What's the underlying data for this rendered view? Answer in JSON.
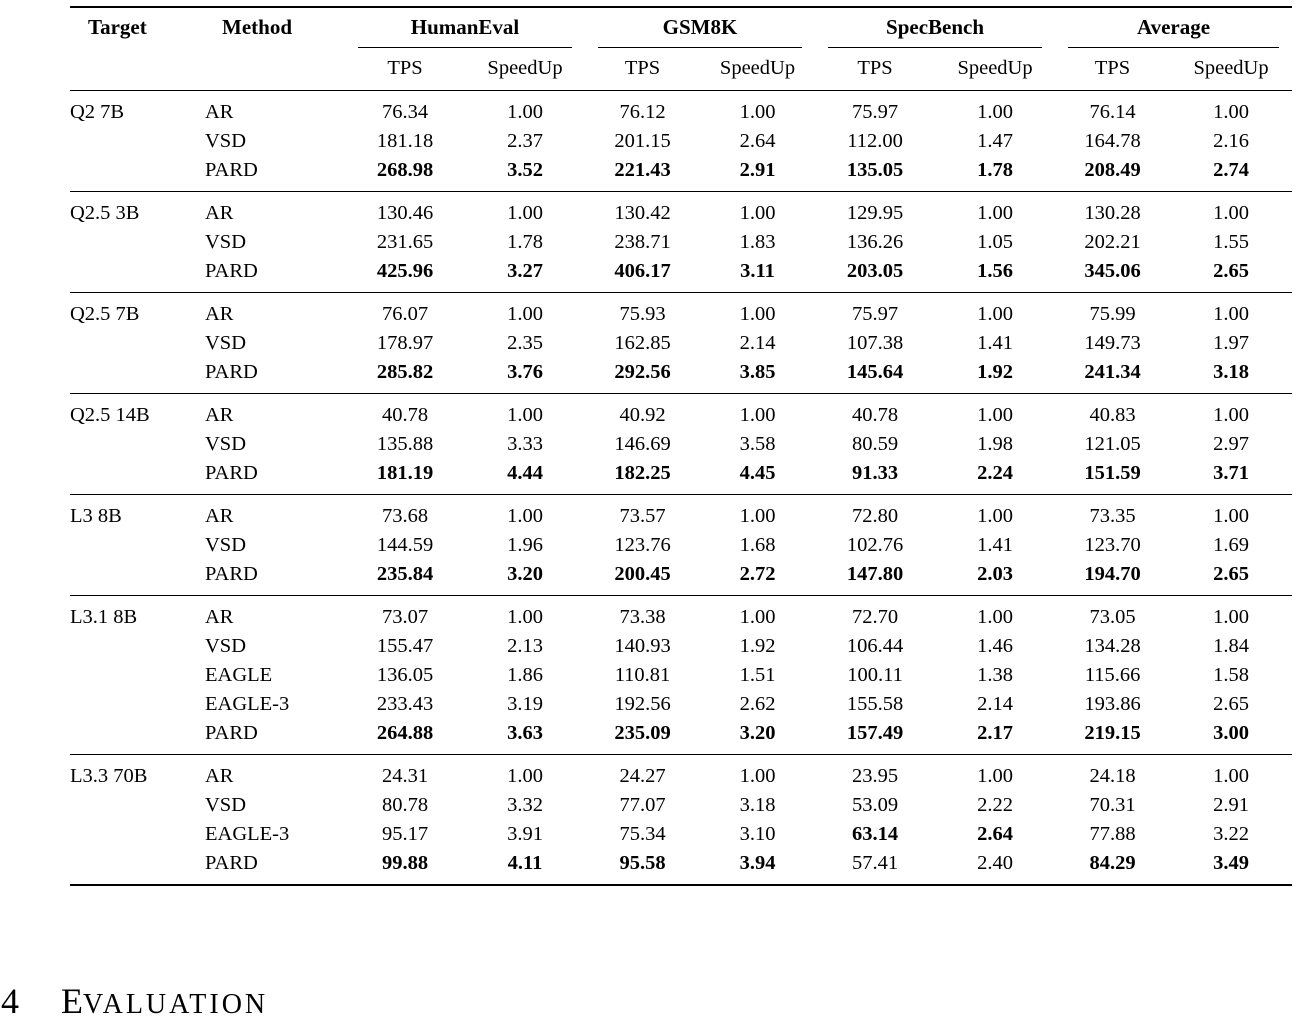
{
  "table": {
    "headers": {
      "target": "Target",
      "method": "Method",
      "groups": [
        "HumanEval",
        "GSM8K",
        "SpecBench",
        "Average"
      ],
      "sub_tps": "TPS",
      "sub_speedup": "SpeedUp"
    },
    "groups": [
      {
        "target": "Q2 7B",
        "rows": [
          {
            "method": "AR",
            "cells": [
              "76.34",
              "1.00",
              "76.12",
              "1.00",
              "75.97",
              "1.00",
              "76.14",
              "1.00"
            ],
            "bold": [
              0,
              0,
              0,
              0,
              0,
              0,
              0,
              0
            ]
          },
          {
            "method": "VSD",
            "cells": [
              "181.18",
              "2.37",
              "201.15",
              "2.64",
              "112.00",
              "1.47",
              "164.78",
              "2.16"
            ],
            "bold": [
              0,
              0,
              0,
              0,
              0,
              0,
              0,
              0
            ]
          },
          {
            "method": "PARD",
            "cells": [
              "268.98",
              "3.52",
              "221.43",
              "2.91",
              "135.05",
              "1.78",
              "208.49",
              "2.74"
            ],
            "bold": [
              1,
              1,
              1,
              1,
              1,
              1,
              1,
              1
            ]
          }
        ]
      },
      {
        "target": "Q2.5 3B",
        "rows": [
          {
            "method": "AR",
            "cells": [
              "130.46",
              "1.00",
              "130.42",
              "1.00",
              "129.95",
              "1.00",
              "130.28",
              "1.00"
            ],
            "bold": [
              0,
              0,
              0,
              0,
              0,
              0,
              0,
              0
            ]
          },
          {
            "method": "VSD",
            "cells": [
              "231.65",
              "1.78",
              "238.71",
              "1.83",
              "136.26",
              "1.05",
              "202.21",
              "1.55"
            ],
            "bold": [
              0,
              0,
              0,
              0,
              0,
              0,
              0,
              0
            ]
          },
          {
            "method": "PARD",
            "cells": [
              "425.96",
              "3.27",
              "406.17",
              "3.11",
              "203.05",
              "1.56",
              "345.06",
              "2.65"
            ],
            "bold": [
              1,
              1,
              1,
              1,
              1,
              1,
              1,
              1
            ]
          }
        ]
      },
      {
        "target": "Q2.5 7B",
        "rows": [
          {
            "method": "AR",
            "cells": [
              "76.07",
              "1.00",
              "75.93",
              "1.00",
              "75.97",
              "1.00",
              "75.99",
              "1.00"
            ],
            "bold": [
              0,
              0,
              0,
              0,
              0,
              0,
              0,
              0
            ]
          },
          {
            "method": "VSD",
            "cells": [
              "178.97",
              "2.35",
              "162.85",
              "2.14",
              "107.38",
              "1.41",
              "149.73",
              "1.97"
            ],
            "bold": [
              0,
              0,
              0,
              0,
              0,
              0,
              0,
              0
            ]
          },
          {
            "method": "PARD",
            "cells": [
              "285.82",
              "3.76",
              "292.56",
              "3.85",
              "145.64",
              "1.92",
              "241.34",
              "3.18"
            ],
            "bold": [
              1,
              1,
              1,
              1,
              1,
              1,
              1,
              1
            ]
          }
        ]
      },
      {
        "target": "Q2.5 14B",
        "rows": [
          {
            "method": "AR",
            "cells": [
              "40.78",
              "1.00",
              "40.92",
              "1.00",
              "40.78",
              "1.00",
              "40.83",
              "1.00"
            ],
            "bold": [
              0,
              0,
              0,
              0,
              0,
              0,
              0,
              0
            ]
          },
          {
            "method": "VSD",
            "cells": [
              "135.88",
              "3.33",
              "146.69",
              "3.58",
              "80.59",
              "1.98",
              "121.05",
              "2.97"
            ],
            "bold": [
              0,
              0,
              0,
              0,
              0,
              0,
              0,
              0
            ]
          },
          {
            "method": "PARD",
            "cells": [
              "181.19",
              "4.44",
              "182.25",
              "4.45",
              "91.33",
              "2.24",
              "151.59",
              "3.71"
            ],
            "bold": [
              1,
              1,
              1,
              1,
              1,
              1,
              1,
              1
            ]
          }
        ]
      },
      {
        "target": "L3 8B",
        "rows": [
          {
            "method": "AR",
            "cells": [
              "73.68",
              "1.00",
              "73.57",
              "1.00",
              "72.80",
              "1.00",
              "73.35",
              "1.00"
            ],
            "bold": [
              0,
              0,
              0,
              0,
              0,
              0,
              0,
              0
            ]
          },
          {
            "method": "VSD",
            "cells": [
              "144.59",
              "1.96",
              "123.76",
              "1.68",
              "102.76",
              "1.41",
              "123.70",
              "1.69"
            ],
            "bold": [
              0,
              0,
              0,
              0,
              0,
              0,
              0,
              0
            ]
          },
          {
            "method": "PARD",
            "cells": [
              "235.84",
              "3.20",
              "200.45",
              "2.72",
              "147.80",
              "2.03",
              "194.70",
              "2.65"
            ],
            "bold": [
              1,
              1,
              1,
              1,
              1,
              1,
              1,
              1
            ]
          }
        ]
      },
      {
        "target": "L3.1 8B",
        "rows": [
          {
            "method": "AR",
            "cells": [
              "73.07",
              "1.00",
              "73.38",
              "1.00",
              "72.70",
              "1.00",
              "73.05",
              "1.00"
            ],
            "bold": [
              0,
              0,
              0,
              0,
              0,
              0,
              0,
              0
            ]
          },
          {
            "method": "VSD",
            "cells": [
              "155.47",
              "2.13",
              "140.93",
              "1.92",
              "106.44",
              "1.46",
              "134.28",
              "1.84"
            ],
            "bold": [
              0,
              0,
              0,
              0,
              0,
              0,
              0,
              0
            ]
          },
          {
            "method": "EAGLE",
            "cells": [
              "136.05",
              "1.86",
              "110.81",
              "1.51",
              "100.11",
              "1.38",
              "115.66",
              "1.58"
            ],
            "bold": [
              0,
              0,
              0,
              0,
              0,
              0,
              0,
              0
            ]
          },
          {
            "method": "EAGLE-3",
            "cells": [
              "233.43",
              "3.19",
              "192.56",
              "2.62",
              "155.58",
              "2.14",
              "193.86",
              "2.65"
            ],
            "bold": [
              0,
              0,
              0,
              0,
              0,
              0,
              0,
              0
            ]
          },
          {
            "method": "PARD",
            "cells": [
              "264.88",
              "3.63",
              "235.09",
              "3.20",
              "157.49",
              "2.17",
              "219.15",
              "3.00"
            ],
            "bold": [
              1,
              1,
              1,
              1,
              1,
              1,
              1,
              1
            ]
          }
        ]
      },
      {
        "target": "L3.3 70B",
        "rows": [
          {
            "method": "AR",
            "cells": [
              "24.31",
              "1.00",
              "24.27",
              "1.00",
              "23.95",
              "1.00",
              "24.18",
              "1.00"
            ],
            "bold": [
              0,
              0,
              0,
              0,
              0,
              0,
              0,
              0
            ]
          },
          {
            "method": "VSD",
            "cells": [
              "80.78",
              "3.32",
              "77.07",
              "3.18",
              "53.09",
              "2.22",
              "70.31",
              "2.91"
            ],
            "bold": [
              0,
              0,
              0,
              0,
              0,
              0,
              0,
              0
            ]
          },
          {
            "method": "EAGLE-3",
            "cells": [
              "95.17",
              "3.91",
              "75.34",
              "3.10",
              "63.14",
              "2.64",
              "77.88",
              "3.22"
            ],
            "bold": [
              0,
              0,
              0,
              0,
              1,
              1,
              0,
              0
            ]
          },
          {
            "method": "PARD",
            "cells": [
              "99.88",
              "4.11",
              "95.58",
              "3.94",
              "57.41",
              "2.40",
              "84.29",
              "3.49"
            ],
            "bold": [
              1,
              1,
              1,
              1,
              0,
              0,
              1,
              1
            ]
          }
        ]
      }
    ]
  },
  "section": {
    "number": "4",
    "title": "Evaluation"
  },
  "colors": {
    "text": "#000000",
    "background": "#ffffff",
    "rule": "#000000"
  }
}
